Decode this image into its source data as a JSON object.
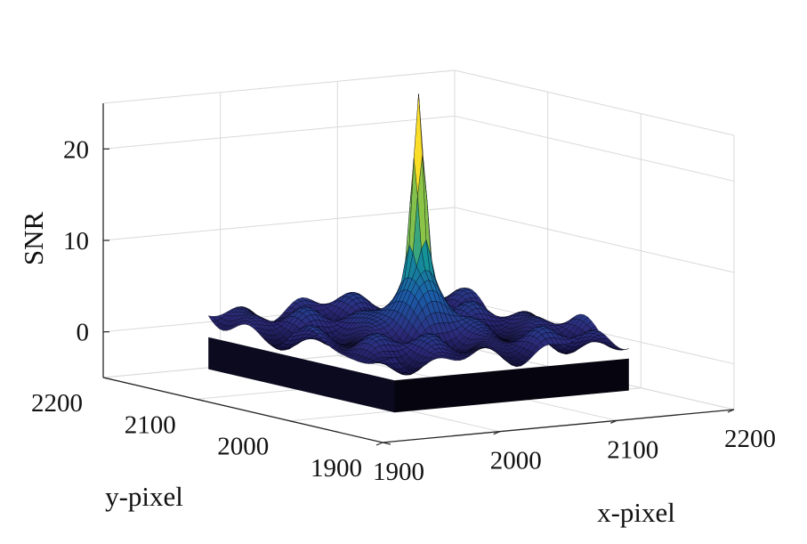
{
  "chart_data": {
    "type": "surface3d",
    "title": "",
    "xlabel": "x-pixel",
    "ylabel": "y-pixel",
    "zlabel": "SNR",
    "x_ticks": [
      "1900",
      "2000",
      "2100",
      "2200"
    ],
    "y_ticks": [
      "1900",
      "2000",
      "2100",
      "2200"
    ],
    "z_ticks": [
      "0",
      "10",
      "20"
    ],
    "xlim": [
      1900,
      2200
    ],
    "ylim": [
      1900,
      2200
    ],
    "zlim": [
      -5,
      25
    ],
    "grid": true,
    "colormap": "parula",
    "surface_region": {
      "x_range": [
        1950,
        2150
      ],
      "y_range": [
        1950,
        2150
      ]
    },
    "peak": {
      "x": 2050,
      "y": 2050,
      "snr": 20.8
    },
    "background_snr_range": [
      0,
      4
    ]
  },
  "colors": {
    "dark_surface": "#120e30",
    "mid_surface": "#2c2a7a",
    "grid": "#d9d9d9",
    "axis": "#262626"
  }
}
